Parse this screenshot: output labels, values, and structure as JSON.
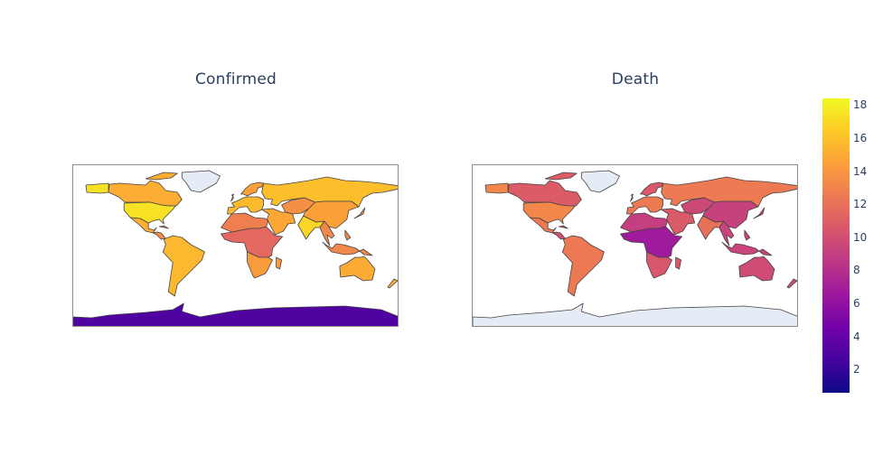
{
  "maps": [
    {
      "title": "Confirmed",
      "regions": [
        {
          "name": "Canada",
          "value": 15.1
        },
        {
          "name": "Greenland",
          "value": null
        },
        {
          "name": "United States",
          "value": 17.4
        },
        {
          "name": "Mexico",
          "value": 15.2
        },
        {
          "name": "Central America",
          "value": 13.5
        },
        {
          "name": "South America",
          "value": 15.6
        },
        {
          "name": "Western Europe",
          "value": 15.7
        },
        {
          "name": "Scandinavia",
          "value": 14.5
        },
        {
          "name": "Russia",
          "value": 15.9
        },
        {
          "name": "Central Asia",
          "value": 13.6
        },
        {
          "name": "Middle East",
          "value": 14.8
        },
        {
          "name": "India",
          "value": 16.9
        },
        {
          "name": "China",
          "value": 14.5
        },
        {
          "name": "Southeast Asia",
          "value": 13.2
        },
        {
          "name": "North Africa",
          "value": 12.8
        },
        {
          "name": "Sub-Saharan Africa",
          "value": 11.5
        },
        {
          "name": "Southern Africa",
          "value": 14.2
        },
        {
          "name": "Australia",
          "value": 15.0
        },
        {
          "name": "Antarctica",
          "value": 3.0
        }
      ]
    },
    {
      "title": "Death",
      "regions": [
        {
          "name": "Canada",
          "value": 10.8
        },
        {
          "name": "Greenland",
          "value": null
        },
        {
          "name": "United States",
          "value": 13.2
        },
        {
          "name": "Mexico",
          "value": 12.5
        },
        {
          "name": "Central America",
          "value": 10.2
        },
        {
          "name": "South America",
          "value": 12.4
        },
        {
          "name": "Western Europe",
          "value": 12.5
        },
        {
          "name": "Scandinavia",
          "value": 10.6
        },
        {
          "name": "Russia",
          "value": 12.5
        },
        {
          "name": "Central Asia",
          "value": 9.6
        },
        {
          "name": "Middle East",
          "value": 10.7
        },
        {
          "name": "India",
          "value": 12.0
        },
        {
          "name": "China",
          "value": 9.2
        },
        {
          "name": "Southeast Asia",
          "value": 9.4
        },
        {
          "name": "North Africa",
          "value": 9.0
        },
        {
          "name": "Sub-Saharan Africa",
          "value": 6.8
        },
        {
          "name": "Southern Africa",
          "value": 10.5
        },
        {
          "name": "Australia",
          "value": 9.8
        },
        {
          "name": "Antarctica",
          "value": null
        }
      ]
    }
  ],
  "colorbar": {
    "min": 0.6,
    "max": 18.4,
    "ticks": [
      2,
      4,
      6,
      8,
      10,
      12,
      14,
      16,
      18
    ],
    "colorscale": [
      "#0d0887",
      "#46039f",
      "#7201a8",
      "#9c179e",
      "#bd3786",
      "#d8576b",
      "#ed7953",
      "#fb9f3a",
      "#fdca26",
      "#f0f921"
    ],
    "missing_color": "#e5ecf6",
    "border_color": "#444444"
  }
}
